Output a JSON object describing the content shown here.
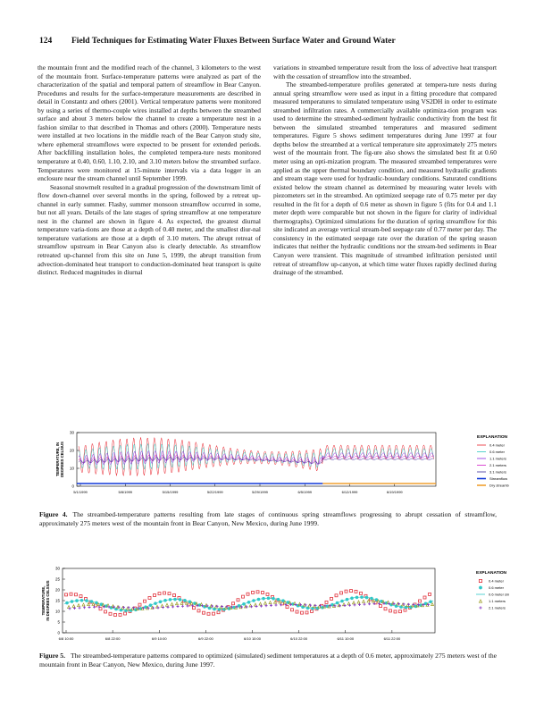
{
  "header": {
    "page_number": "124",
    "title": "Field Techniques for Estimating Water Fluxes Between Surface Water and Ground Water"
  },
  "columns": {
    "left": [
      "the mountain front and the modified reach of the channel, 3 kilometers to the west of the mountain front. Surface-temperature patterns were analyzed as part of the characterization of the spatial and temporal pattern of streamflow in Bear Canyon. Procedures and results for the surface-temperature measurements are described in detail in Constantz and others (2001). Vertical temperature patterns were monitored by using a series of thermo-couple wires installed at depths between the streambed surface and about 3 meters below the channel to create a temperature nest in a fashion similar to that described in Thomas and others (2000). Temperature nests were installed at two locations in the middle reach of the Bear Canyon study site, where ephemeral streamflows were expected to be present for extended periods. After backfilling installation holes, the completed tempera-ture nests monitored temperature at 0.40, 0.60, 1.10, 2.10, and 3.10 meters below the streambed surface. Temperatures were monitored at 15-minute intervals via a data logger in an enclosure near the stream channel until September 1999.",
      "Seasonal snowmelt resulted in a gradual progression of the downstream limit of flow down-channel over several months in the spring, followed by a retreat up-channel in early summer. Flashy, summer monsoon streamflow occurred in some, but not all years. Details of the late stages of spring streamflow at one temperature nest in the channel are shown in figure 4. As expected, the greatest diurnal temperature varia-tions are those at a depth of 0.40 meter, and the smallest diur-nal temperature variations are those at a depth of 3.10 meters. The abrupt retreat of streamflow upstream in Bear Canyon also is clearly detectable. As streamflow retreated up-channel from this site on June 5, 1999, the abrupt transition from advection-dominated heat transport to conduction-dominated heat transport is quite distinct. Reduced magnitudes in diurnal"
    ],
    "right": [
      "variations in streambed temperature result from the loss of advective heat transport with the cessation of streamflow into the streambed.",
      "The streambed-temperature profiles generated at tempera-ture nests during annual spring streamflow were used as input in a fitting procedure that compared measured temperatures to simulated temperature using VS2DH in order to estimate streambed infiltration rates. A commercially available optimiza-tion program was used to determine the streambed-sediment hydraulic conductivity from the best fit between the simulated streambed temperatures and measured sediment temperatures. Figure 5 shows sediment temperatures during June 1997 at four depths below the streambed at a vertical temperature site approximately 275 meters west of the mountain front. The fig-ure also shows the simulated best fit at 0.60 meter using an opti-mization program. The measured streambed temperatures were applied as the upper thermal boundary condition, and measured hydraulic gradients and stream stage were used for hydraulic-boundary conditions. Saturated conditions existed below the stream channel as determined by measuring water levels with piezometers set in the streambed. An optimized seepage rate of 0.75 meter per day resulted in the fit for a depth of 0.6 meter as shown in figure 5 (fits for 0.4 and 1.1 meter depth were comparable but not shown in the figure for clarity of individual thermographs). Optimized simulations for the duration of spring streamflow for this site indicated an average vertical stream-bed seepage rate of 0.77 meter per day. The consistency in the estimated seepage rate over the duration of the spring season indicates that neither the hydraulic conditions nor the stream-bed sediments in Bear Canyon were transient. This magnitude of streambed infiltration persisted until retreat of streamflow up-canyon, at which time water fluxes rapidly declined during drainage of the streambed."
    ]
  },
  "figures": [
    {
      "y_label": [
        "TEMPERATURE, IN",
        "DEGREES CELSIUS"
      ],
      "ylim": [
        0,
        30
      ],
      "yticks": [
        0,
        10,
        20,
        30
      ],
      "xticks": [
        "5/1/1999",
        "5/8/1999",
        "5/15/1999",
        "5/22/1999",
        "5/29/1999",
        "6/5/1999",
        "6/12/1999",
        "6/19/1999"
      ],
      "legend_title": "EXPLANATION",
      "legend": [
        {
          "label": "0.4 meter",
          "color": "#e8202a",
          "marker": "line"
        },
        {
          "label": "0.6 meter",
          "color": "#2fc7c0",
          "marker": "line"
        },
        {
          "label": "1.1 meters",
          "color": "#8a2be2",
          "marker": "line"
        },
        {
          "label": "2.1 meters",
          "color": "#d21ec8",
          "marker": "line"
        },
        {
          "label": "3.1 meters",
          "color": "#3a2a9a",
          "marker": "line"
        },
        {
          "label": "Streamflow",
          "color": "#1038d8",
          "marker": "thick"
        },
        {
          "label": "Dry streambed",
          "color": "#f0a030",
          "marker": "thick"
        }
      ],
      "caption_label": "Figure 4.",
      "caption": "The streambed-temperature patterns resulting from late stages of continuous spring streamflows progressing to abrupt cessation of streamflow, approximately 275 meters west of the mountain front in Bear Canyon, New Mexico, during June 1999."
    },
    {
      "y_label": [
        "TEMPERATURE,",
        "IN DEGREES CELSIUS"
      ],
      "ylim": [
        0,
        30
      ],
      "yticks": [
        0,
        5,
        10,
        15,
        20,
        25,
        30
      ],
      "xticks": [
        "6/8 10:00",
        "6/8 22:00",
        "6/9 10:00",
        "6/9 22:00",
        "6/10 10:00",
        "6/10 22:00",
        "6/11 10:00",
        "6/11 22:00"
      ],
      "legend_title": "EXPLANATION",
      "legend": [
        {
          "label": "0.4 meter",
          "color": "#e0303a",
          "marker": "square"
        },
        {
          "label": "0.6 meter",
          "color": "#30c8c8",
          "marker": "circle"
        },
        {
          "label": "0.6 meter simulated",
          "color": "#30c8c8",
          "marker": "line"
        },
        {
          "label": "1.1 meters",
          "color": "#9a9a20",
          "marker": "triangle"
        },
        {
          "label": "2.1 meters",
          "color": "#8030c0",
          "marker": "plus"
        }
      ],
      "caption_label": "Figure 5.",
      "caption": "The streambed-temperature patterns compared to optimized (simulated) sediment temperatures at a depth of 0.6 meter, approximately 275 meters west of the mountain front in Bear Canyon, New Mexico, during June 1997."
    }
  ]
}
